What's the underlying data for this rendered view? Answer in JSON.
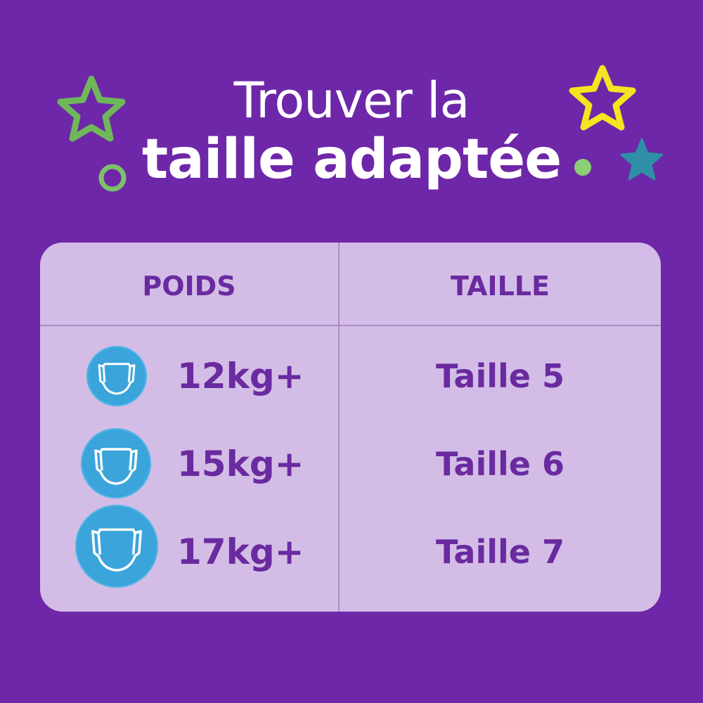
{
  "title": {
    "line1": "Trouver la",
    "line2": "taille adaptée"
  },
  "table": {
    "headers": [
      "POIDS",
      "TAILLE"
    ],
    "rows": [
      {
        "weight": "12kg+",
        "size": "Taille 5",
        "icon": "diaper-icon"
      },
      {
        "weight": "15kg+",
        "size": "Taille 6",
        "icon": "diaper-icon"
      },
      {
        "weight": "17kg+",
        "size": "Taille 7",
        "icon": "diaper-icon"
      }
    ]
  },
  "colors": {
    "background": "#6e27a8",
    "table": "#d3bde6",
    "text": "#6a2aa0",
    "icon_circle": "#3aa4db",
    "star_green": "#6fb85a",
    "star_yellow": "#f3e620",
    "star_teal": "#2f8fa6"
  }
}
